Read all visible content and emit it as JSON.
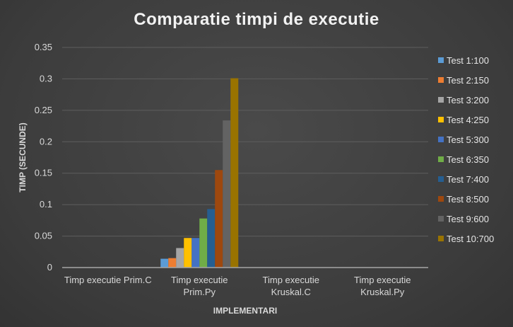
{
  "chart_data": {
    "type": "bar",
    "title": "Comparatie timpi de executie",
    "xlabel": "IMPLEMENTARI",
    "ylabel": "TIMP (SECUNDE)",
    "ylim": [
      0,
      0.35
    ],
    "yticks": [
      "0",
      "0.05",
      "0.1",
      "0.15",
      "0.2",
      "0.25",
      "0.3",
      "0.35"
    ],
    "grid": true,
    "legend_position": "right",
    "categories": [
      [
        "Timp executie Prim.C"
      ],
      [
        "Timp executie",
        "Prim.Py"
      ],
      [
        "Timp executie",
        "Kruskal.C"
      ],
      [
        "Timp executie",
        "Kruskal.Py"
      ]
    ],
    "series": [
      {
        "name": "Test 1:100",
        "color": "#5b9bd5",
        "values": [
          0,
          0.014,
          0,
          0
        ]
      },
      {
        "name": "Test 2:150",
        "color": "#ed7d31",
        "values": [
          0,
          0.015,
          0,
          0
        ]
      },
      {
        "name": "Test 3:200",
        "color": "#a5a5a5",
        "values": [
          0,
          0.031,
          0,
          0
        ]
      },
      {
        "name": "Test 4:250",
        "color": "#ffc000",
        "values": [
          0,
          0.047,
          0,
          0
        ]
      },
      {
        "name": "Test 5:300",
        "color": "#4472c4",
        "values": [
          0,
          0.047,
          0,
          0
        ]
      },
      {
        "name": "Test 6:350",
        "color": "#70ad47",
        "values": [
          0,
          0.078,
          0,
          0
        ]
      },
      {
        "name": "Test 7:400",
        "color": "#255e91",
        "values": [
          0,
          0.093,
          0,
          0
        ]
      },
      {
        "name": "Test 8:500",
        "color": "#9e480e",
        "values": [
          0,
          0.155,
          0,
          0
        ]
      },
      {
        "name": "Test 9:600",
        "color": "#636363",
        "values": [
          0,
          0.234,
          0,
          0
        ]
      },
      {
        "name": "Test 10:700",
        "color": "#997300",
        "values": [
          0,
          0.301,
          0,
          0
        ]
      }
    ]
  }
}
